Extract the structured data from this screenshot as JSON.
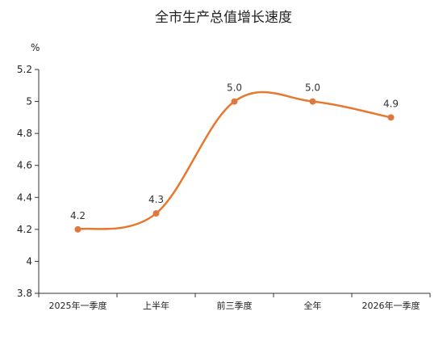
{
  "chart_data": {
    "type": "line",
    "title": "全市生产总值增长速度",
    "unit_label": "%",
    "categories": [
      "2025年一季度",
      "上半年",
      "前三季度",
      "全年",
      "2026年一季度"
    ],
    "series": [
      {
        "values": [
          4.2,
          4.3,
          5.0,
          5.0,
          4.9
        ],
        "data_labels": [
          "4.2",
          "4.3",
          "5.0",
          "5.0",
          "4.9"
        ],
        "color": "#e8782e",
        "smooth": true
      }
    ],
    "ylim": [
      3.8,
      5.2
    ],
    "yticks": [
      3.8,
      4,
      4.2,
      4.4,
      4.6,
      4.8,
      5,
      5.2
    ],
    "ytick_labels": [
      "3.8",
      "4",
      "4.2",
      "4.4",
      "4.6",
      "4.8",
      "5",
      "5.2"
    ],
    "grid": false,
    "legend": "none"
  }
}
